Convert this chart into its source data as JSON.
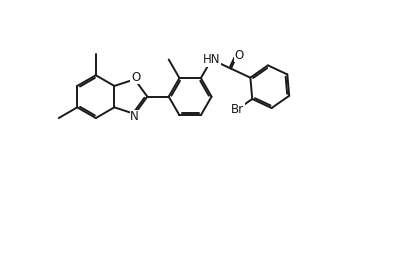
{
  "bg_color": "#ffffff",
  "line_color": "#1a1a1a",
  "line_width": 1.4,
  "font_size": 8.5,
  "fig_width": 4.14,
  "fig_height": 2.6,
  "dpi": 100,
  "bl": 0.52,
  "xlim": [
    0,
    10
  ],
  "ylim": [
    0,
    6.28
  ]
}
